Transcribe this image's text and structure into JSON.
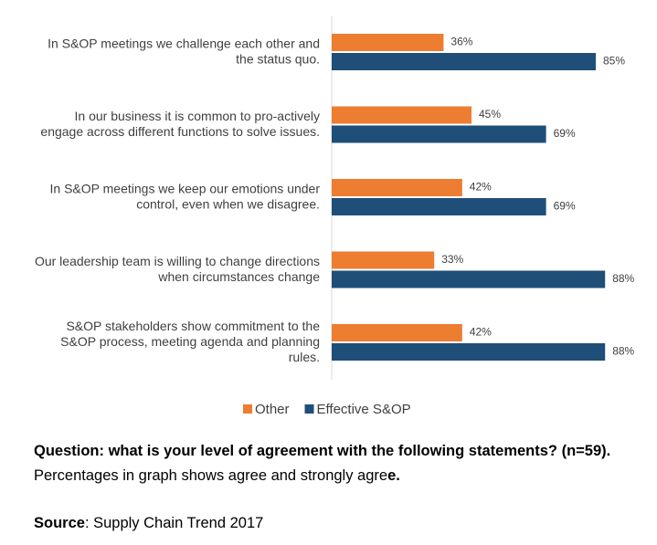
{
  "chart_data": {
    "type": "bar",
    "orientation": "horizontal",
    "categories": [
      "In S&OP meetings we challenge each other and\nthe status quo.",
      "In our business it is common to pro-actively\nengage across different functions to solve issues.",
      "In S&OP meetings we keep our emotions under\ncontrol, even when we disagree.",
      "Our leadership team is willing to change directions\nwhen circumstances change",
      "S&OP stakeholders show commitment to the\nS&OP process, meeting agenda and planning\nrules."
    ],
    "series": [
      {
        "name": "Other",
        "color": "#ED7D31",
        "values": [
          36,
          45,
          42,
          33,
          42
        ],
        "value_labels": [
          "36%",
          "45%",
          "42%",
          "33%",
          "42%"
        ]
      },
      {
        "name": "Effective S&OP",
        "color": "#1F4E79",
        "values": [
          85,
          69,
          69,
          88,
          88
        ],
        "value_labels": [
          "85%",
          "69%",
          "69%",
          "88%",
          "88%"
        ]
      }
    ],
    "legend": "bottom"
  },
  "footer": {
    "question_bold": "Question: what is your level of agreement with the following statements? (n=59).",
    "question_text": " Percentages in graph shows agree and strongly agre",
    "question_end": "e.",
    "source_bold": "Source",
    "source_text": ": Supply Chain Trend 2017"
  }
}
